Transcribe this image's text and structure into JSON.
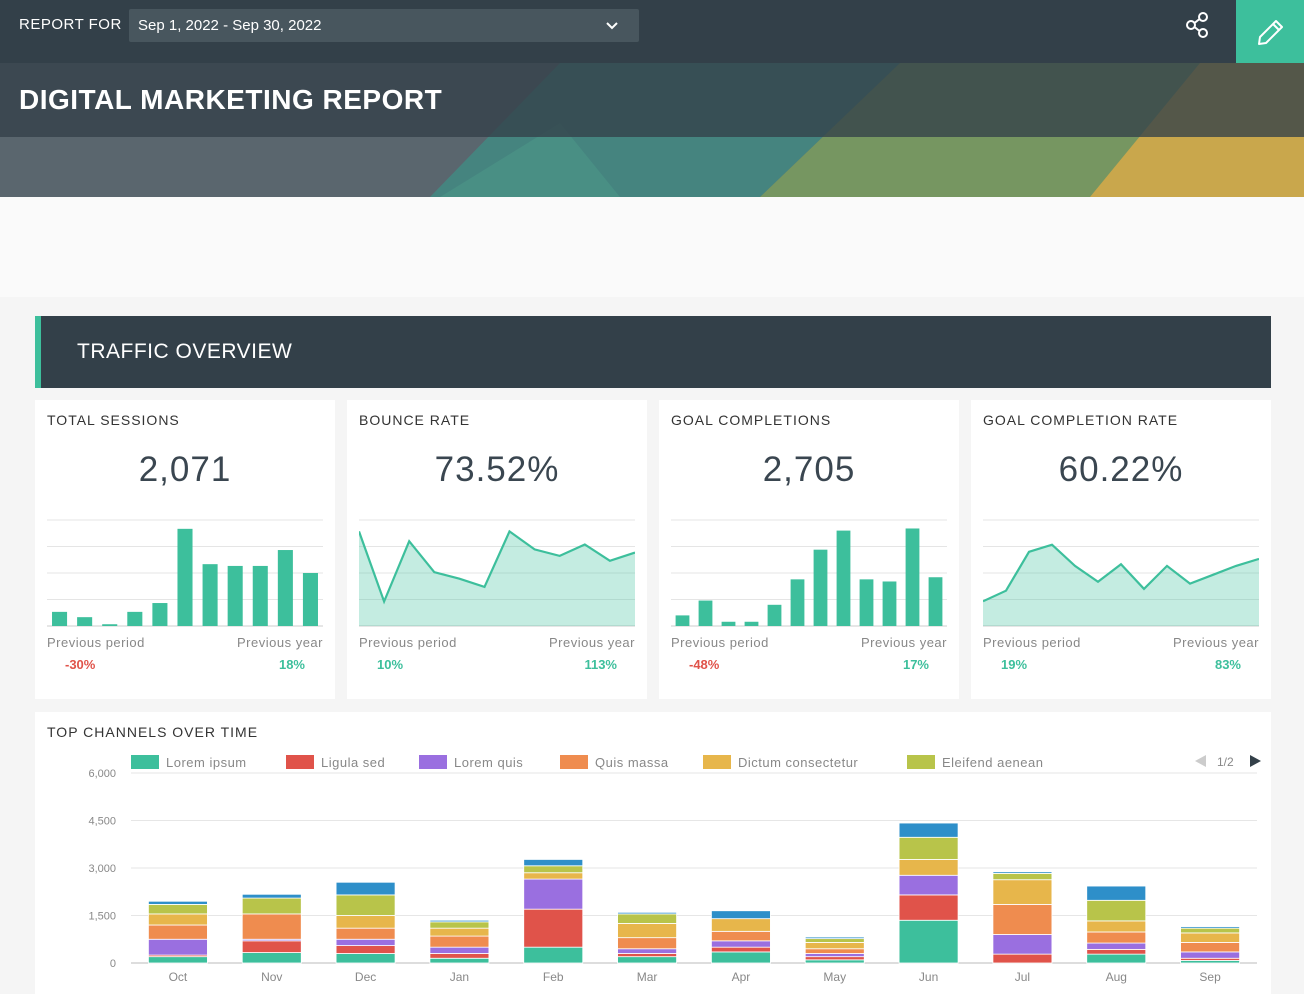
{
  "header": {
    "report_for_label": "REPORT FOR",
    "date_range": "Sep 1, 2022 - Sep 30, 2022",
    "share_icon": "share-icon",
    "edit_icon": "pencil-icon",
    "accent_color": "#3dbf9c"
  },
  "banner": {
    "title": "DIGITAL MARKETING REPORT"
  },
  "section": {
    "title": "TRAFFIC OVERVIEW"
  },
  "kpis": [
    {
      "label": "TOTAL SESSIONS",
      "value": "2,071",
      "foot_left": "Previous period",
      "foot_right": "Previous year",
      "pct_left": "-30%",
      "pct_right": "18%",
      "chart_data": {
        "type": "bar",
        "values": [
          8,
          5,
          1,
          8,
          13,
          55,
          35,
          34,
          34,
          43,
          30
        ],
        "ylim": [
          0,
          60
        ]
      }
    },
    {
      "label": "BOUNCE RATE",
      "value": "73.52%",
      "foot_left": "Previous period",
      "foot_right": "Previous year",
      "pct_left": "10%",
      "pct_right": "113%",
      "chart_data": {
        "type": "area",
        "values": [
          58,
          15,
          52,
          33,
          29,
          24,
          58,
          47,
          43,
          50,
          40,
          45
        ],
        "ylim": [
          0,
          65
        ]
      }
    },
    {
      "label": "GOAL COMPLETIONS",
      "value": "2,705",
      "foot_left": "Previous period",
      "foot_right": "Previous year",
      "pct_left": "-48%",
      "pct_right": "17%",
      "chart_data": {
        "type": "bar",
        "values": [
          5,
          12,
          2,
          2,
          10,
          22,
          36,
          45,
          22,
          21,
          46,
          23
        ],
        "ylim": [
          0,
          50
        ]
      }
    },
    {
      "label": "GOAL COMPLETION RATE",
      "value": "60.22%",
      "foot_left": "Previous period",
      "foot_right": "Previous year",
      "pct_left": "19%",
      "pct_right": "83%",
      "chart_data": {
        "type": "area",
        "values": [
          14,
          20,
          42,
          46,
          34,
          25,
          35,
          21,
          34,
          24,
          29,
          34,
          38
        ],
        "ylim": [
          0,
          60
        ]
      }
    }
  ],
  "channels": {
    "title": "TOP CHANNELS OVER TIME",
    "pager": "1/2",
    "chart_data": {
      "type": "bar",
      "stacked": true,
      "categories": [
        "Oct",
        "Nov",
        "Dec",
        "Jan",
        "Feb",
        "Mar",
        "Apr",
        "May",
        "Jun",
        "Jul",
        "Aug",
        "Sep"
      ],
      "ylim": [
        0,
        6000
      ],
      "yticks": [
        "0",
        "1,500",
        "3,000",
        "4,500",
        "6,000"
      ],
      "ytick_values": [
        0,
        1500,
        3000,
        4500,
        6000
      ],
      "series": [
        {
          "name": "Lorem ipsum",
          "color": "#3dbf9c",
          "values": [
            200,
            330,
            300,
            150,
            500,
            200,
            350,
            100,
            1350,
            0,
            280,
            80
          ]
        },
        {
          "name": "Ligula sed",
          "color": "#e0534a",
          "values": [
            50,
            370,
            250,
            150,
            1200,
            100,
            150,
            100,
            800,
            280,
            150,
            70
          ]
        },
        {
          "name": "Lorem quis",
          "color": "#9a6fe0",
          "values": [
            500,
            50,
            200,
            200,
            950,
            150,
            200,
            100,
            620,
            620,
            200,
            200
          ]
        },
        {
          "name": "Quis massa",
          "color": "#ef8c4f",
          "values": [
            450,
            800,
            350,
            350,
            0,
            350,
            300,
            150,
            0,
            950,
            350,
            300
          ]
        },
        {
          "name": "Dictum consectetur",
          "color": "#e7b64b",
          "values": [
            350,
            0,
            400,
            250,
            200,
            450,
            400,
            200,
            500,
            780,
            350,
            300
          ]
        },
        {
          "name": "Eleifend aenean",
          "color": "#b8c44a",
          "values": [
            300,
            500,
            650,
            200,
            220,
            300,
            0,
            120,
            700,
            200,
            650,
            150
          ]
        },
        {
          "name": "",
          "color": "#2e8fc9",
          "values": [
            100,
            120,
            400,
            50,
            200,
            50,
            250,
            50,
            450,
            50,
            450,
            50
          ]
        }
      ],
      "legend": [
        "Lorem ipsum",
        "Ligula sed",
        "Lorem quis",
        "Quis massa",
        "Dictum consectetur",
        "Eleifend aenean"
      ]
    }
  }
}
